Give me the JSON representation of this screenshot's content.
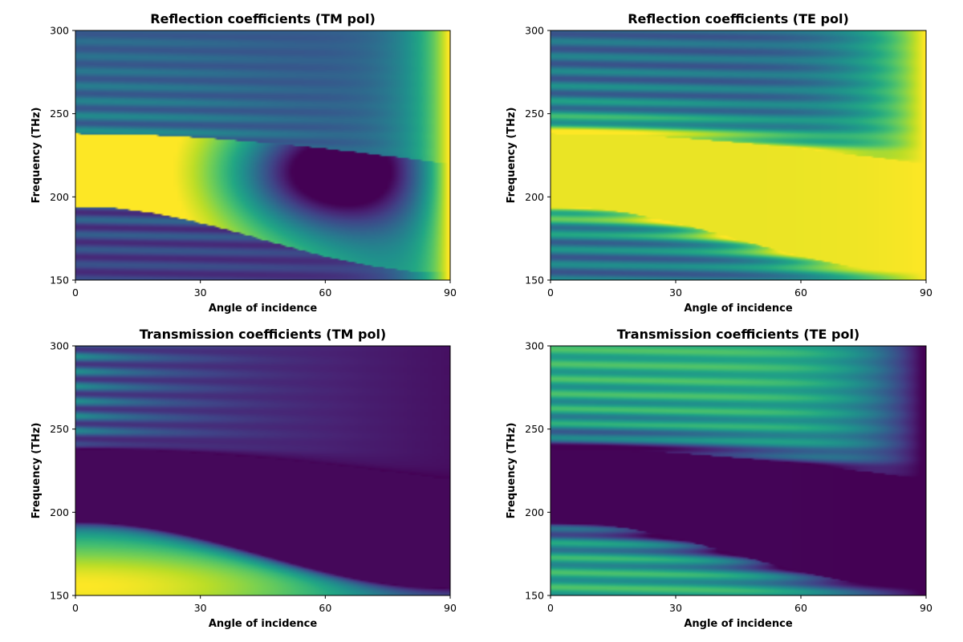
{
  "chart_data": [
    {
      "type": "heatmap",
      "id": "refl_tm",
      "title": "Reflection coefficients (TM pol)",
      "xlabel": "Angle of incidence",
      "ylabel": "Frequency (THz)",
      "xlim": [
        0,
        90
      ],
      "ylim": [
        150,
        300
      ],
      "xticks": [
        "0",
        "30",
        "60",
        "90"
      ],
      "yticks": [
        "150",
        "200",
        "250",
        "300"
      ],
      "colormap": "viridis",
      "value_range": [
        0,
        1
      ],
      "x_count": 91,
      "y_count": 151
    },
    {
      "type": "heatmap",
      "id": "refl_te",
      "title": "Reflection coefficients (TE pol)",
      "xlabel": "Angle of incidence",
      "ylabel": "Frequency (THz)",
      "xlim": [
        0,
        90
      ],
      "ylim": [
        150,
        300
      ],
      "xticks": [
        "0",
        "30",
        "60",
        "90"
      ],
      "yticks": [
        "150",
        "200",
        "250",
        "300"
      ],
      "colormap": "viridis",
      "value_range": [
        0,
        1
      ],
      "x_count": 91,
      "y_count": 151
    },
    {
      "type": "heatmap",
      "id": "trans_tm",
      "title": "Transmission coefficients (TM pol)",
      "xlabel": "Angle of incidence",
      "ylabel": "Frequency (THz)",
      "xlim": [
        0,
        90
      ],
      "ylim": [
        150,
        300
      ],
      "xticks": [
        "0",
        "30",
        "60",
        "90"
      ],
      "yticks": [
        "150",
        "200",
        "250",
        "300"
      ],
      "colormap": "viridis",
      "value_range": [
        0,
        1
      ],
      "x_count": 91,
      "y_count": 151
    },
    {
      "type": "heatmap",
      "id": "trans_te",
      "title": "Transmission coefficients (TE pol)",
      "xlabel": "Angle of incidence",
      "ylabel": "Frequency (THz)",
      "xlim": [
        0,
        90
      ],
      "ylim": [
        150,
        300
      ],
      "xticks": [
        "0",
        "30",
        "60",
        "90"
      ],
      "yticks": [
        "150",
        "200",
        "250",
        "300"
      ],
      "colormap": "viridis",
      "value_range": [
        0,
        1
      ],
      "x_count": 91,
      "y_count": 151
    }
  ]
}
